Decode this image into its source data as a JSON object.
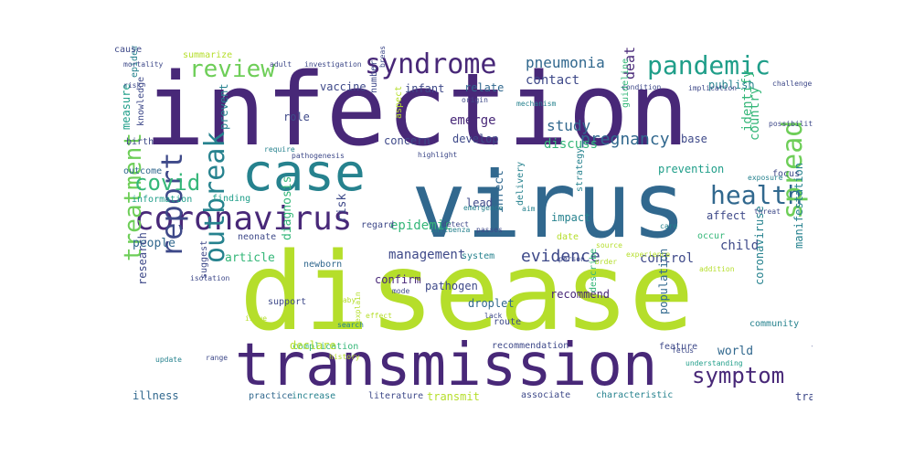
{
  "word_cloud": {
    "palette": {
      "dark_purple": "#440154",
      "purple": "#482878",
      "indigo": "#3e4989",
      "blue": "#31688e",
      "teal": "#26828e",
      "green_teal": "#1f9e89",
      "green": "#35b779",
      "lime": "#6ece58",
      "yellow_green": "#b5de2b"
    },
    "words": [
      {
        "text": "infection",
        "color": "#482878",
        "orientation": "horizontal"
      },
      {
        "text": "disease",
        "color": "#b5de2b",
        "orientation": "horizontal"
      },
      {
        "text": "virus",
        "color": "#31688e",
        "orientation": "horizontal"
      },
      {
        "text": "transmission",
        "color": "#482878",
        "orientation": "horizontal"
      },
      {
        "text": "case",
        "color": "#26828e",
        "orientation": "horizontal"
      },
      {
        "text": "coronavirus",
        "color": "#482878",
        "orientation": "horizontal"
      },
      {
        "text": "syndrome",
        "color": "#482878",
        "orientation": "horizontal"
      },
      {
        "text": "pandemic",
        "color": "#1f9e89",
        "orientation": "horizontal"
      },
      {
        "text": "review",
        "color": "#6ece58",
        "orientation": "horizontal"
      },
      {
        "text": "health",
        "color": "#31688e",
        "orientation": "horizontal"
      },
      {
        "text": "spread",
        "color": "#6ece58",
        "orientation": "vertical"
      },
      {
        "text": "report",
        "color": "#3e4989",
        "orientation": "vertical"
      },
      {
        "text": "outbreak",
        "color": "#26828e",
        "orientation": "vertical"
      },
      {
        "text": "treatment",
        "color": "#6ece58",
        "orientation": "vertical"
      },
      {
        "text": "symptom",
        "color": "#482878",
        "orientation": "horizontal"
      },
      {
        "text": "covid",
        "color": "#35b779",
        "orientation": "horizontal"
      },
      {
        "text": "pregnancy",
        "color": "#31688e",
        "orientation": "horizontal"
      },
      {
        "text": "evidence",
        "color": "#3e4989",
        "orientation": "horizontal"
      },
      {
        "text": "management",
        "color": "#3e4989",
        "orientation": "horizontal"
      },
      {
        "text": "pneumonia",
        "color": "#31688e",
        "orientation": "horizontal"
      },
      {
        "text": "death",
        "color": "#482878",
        "orientation": "vertical"
      },
      {
        "text": "epidemic",
        "color": "#35b779",
        "orientation": "horizontal"
      },
      {
        "text": "contact",
        "color": "#3e4989",
        "orientation": "horizontal"
      },
      {
        "text": "study",
        "color": "#31688e",
        "orientation": "horizontal"
      },
      {
        "text": "emerge",
        "color": "#482878",
        "orientation": "horizontal"
      },
      {
        "text": "discuss",
        "color": "#35b779",
        "orientation": "horizontal"
      },
      {
        "text": "identify",
        "color": "#35b779",
        "orientation": "vertical"
      },
      {
        "text": "country",
        "color": "#35b779",
        "orientation": "vertical"
      },
      {
        "text": "prevention",
        "color": "#1f9e89",
        "orientation": "horizontal"
      },
      {
        "text": "affect",
        "color": "#3e4989",
        "orientation": "horizontal"
      },
      {
        "text": "child",
        "color": "#3e4989",
        "orientation": "horizontal"
      },
      {
        "text": "manifestation",
        "color": "#26828e",
        "orientation": "vertical"
      },
      {
        "text": "coronaviruse",
        "color": "#26828e",
        "orientation": "vertical"
      },
      {
        "text": "control",
        "color": "#3e4989",
        "orientation": "horizontal"
      },
      {
        "text": "world",
        "color": "#31688e",
        "orientation": "horizontal"
      },
      {
        "text": "article",
        "color": "#35b779",
        "orientation": "horizontal"
      },
      {
        "text": "people",
        "color": "#31688e",
        "orientation": "horizontal"
      },
      {
        "text": "diagnosis",
        "color": "#35b779",
        "orientation": "vertical"
      },
      {
        "text": "risk",
        "color": "#3e4989",
        "orientation": "vertical"
      },
      {
        "text": "confirm",
        "color": "#482878",
        "orientation": "horizontal"
      },
      {
        "text": "infect",
        "color": "#31688e",
        "orientation": "vertical"
      },
      {
        "text": "lead",
        "color": "#3e4989",
        "orientation": "horizontal"
      },
      {
        "text": "vaccine",
        "color": "#3e4989",
        "orientation": "horizontal"
      },
      {
        "text": "infant",
        "color": "#3e4989",
        "orientation": "horizontal"
      },
      {
        "text": "relate",
        "color": "#31688e",
        "orientation": "horizontal"
      },
      {
        "text": "publish",
        "color": "#26828e",
        "orientation": "horizontal"
      },
      {
        "text": "measure",
        "color": "#1f9e89",
        "orientation": "vertical"
      },
      {
        "text": "knowledge",
        "color": "#3e4989",
        "orientation": "vertical"
      },
      {
        "text": "epidemiology",
        "color": "#26828e",
        "orientation": "vertical"
      },
      {
        "text": "prevent",
        "color": "#26828e",
        "orientation": "vertical"
      },
      {
        "text": "role",
        "color": "#3e4989",
        "orientation": "horizontal"
      },
      {
        "text": "concern",
        "color": "#3e4989",
        "orientation": "horizontal"
      },
      {
        "text": "develop",
        "color": "#3e4989",
        "orientation": "horizontal"
      },
      {
        "text": "guideline",
        "color": "#35b779",
        "orientation": "vertical"
      },
      {
        "text": "base",
        "color": "#3e4989",
        "orientation": "horizontal"
      },
      {
        "text": "number",
        "color": "#3e4989",
        "orientation": "vertical"
      },
      {
        "text": "aspect",
        "color": "#b5de2b",
        "orientation": "vertical"
      },
      {
        "text": "birth",
        "color": "#3e4989",
        "orientation": "horizontal"
      },
      {
        "text": "outcome",
        "color": "#31688e",
        "orientation": "horizontal"
      },
      {
        "text": "information",
        "color": "#1f9e89",
        "orientation": "horizontal"
      },
      {
        "text": "finding",
        "color": "#1f9e89",
        "orientation": "horizontal"
      },
      {
        "text": "focus",
        "color": "#3e4989",
        "orientation": "horizontal"
      },
      {
        "text": "neonate",
        "color": "#3e4989",
        "orientation": "horizontal"
      },
      {
        "text": "regard",
        "color": "#3e4989",
        "orientation": "horizontal"
      },
      {
        "text": "strategy",
        "color": "#26828e",
        "orientation": "vertical"
      },
      {
        "text": "delivery",
        "color": "#26828e",
        "orientation": "vertical"
      },
      {
        "text": "impact",
        "color": "#26828e",
        "orientation": "horizontal"
      },
      {
        "text": "date",
        "color": "#b5de2b",
        "orientation": "horizontal"
      },
      {
        "text": "occur",
        "color": "#35b779",
        "orientation": "horizontal"
      },
      {
        "text": "research",
        "color": "#3e4989",
        "orientation": "vertical"
      },
      {
        "text": "suggest",
        "color": "#3e4989",
        "orientation": "vertical"
      },
      {
        "text": "newborn",
        "color": "#31688e",
        "orientation": "horizontal"
      },
      {
        "text": "system",
        "color": "#26828e",
        "orientation": "horizontal"
      },
      {
        "text": "pathogen",
        "color": "#3e4989",
        "orientation": "horizontal"
      },
      {
        "text": "droplet",
        "color": "#31688e",
        "orientation": "horizontal"
      },
      {
        "text": "recommend",
        "color": "#482878",
        "orientation": "horizontal"
      },
      {
        "text": "describe",
        "color": "#35b779",
        "orientation": "vertical"
      },
      {
        "text": "population",
        "color": "#31688e",
        "orientation": "vertical"
      },
      {
        "text": "complication",
        "color": "#35b779",
        "orientation": "horizontal"
      },
      {
        "text": "declare",
        "color": "#b5de2b",
        "orientation": "horizontal"
      },
      {
        "text": "recommendation",
        "color": "#3e4989",
        "orientation": "horizontal"
      },
      {
        "text": "feature",
        "color": "#3e4989",
        "orientation": "horizontal"
      },
      {
        "text": "family",
        "color": "#3e4989",
        "orientation": "horizontal"
      },
      {
        "text": "illness",
        "color": "#31688e",
        "orientation": "horizontal"
      },
      {
        "text": "practice",
        "color": "#31688e",
        "orientation": "horizontal"
      },
      {
        "text": "increase",
        "color": "#26828e",
        "orientation": "horizontal"
      },
      {
        "text": "literature",
        "color": "#3e4989",
        "orientation": "horizontal"
      },
      {
        "text": "transmit",
        "color": "#b5de2b",
        "orientation": "horizontal"
      },
      {
        "text": "associate",
        "color": "#3e4989",
        "orientation": "horizontal"
      },
      {
        "text": "characteristic",
        "color": "#26828e",
        "orientation": "horizontal"
      },
      {
        "text": "tract",
        "color": "#3e4989",
        "orientation": "horizontal"
      },
      {
        "text": "route",
        "color": "#3e4989",
        "orientation": "horizontal"
      },
      {
        "text": "community",
        "color": "#26828e",
        "orientation": "horizontal"
      },
      {
        "text": "understanding",
        "color": "#1f9e89",
        "orientation": "horizontal"
      },
      {
        "text": "adult",
        "color": "#3e4989",
        "orientation": "horizontal"
      },
      {
        "text": "mortality",
        "color": "#3e4989",
        "orientation": "horizontal"
      },
      {
        "text": "summarize",
        "color": "#b5de2b",
        "orientation": "horizontal"
      },
      {
        "text": "investigation",
        "color": "#3e4989",
        "orientation": "horizontal"
      },
      {
        "text": "challenge",
        "color": "#3e4989",
        "orientation": "horizontal"
      },
      {
        "text": "implication",
        "color": "#3e4989",
        "orientation": "horizontal"
      },
      {
        "text": "condition",
        "color": "#3e4989",
        "orientation": "horizontal"
      },
      {
        "text": "require",
        "color": "#26828e",
        "orientation": "horizontal"
      },
      {
        "text": "pathogenesis",
        "color": "#3e4989",
        "orientation": "horizontal"
      },
      {
        "text": "highlight",
        "color": "#3e4989",
        "orientation": "horizontal"
      },
      {
        "text": "emergence",
        "color": "#26828e",
        "orientation": "horizontal"
      },
      {
        "text": "aim",
        "color": "#26828e",
        "orientation": "horizontal"
      },
      {
        "text": "influenza",
        "color": "#26828e",
        "orientation": "horizontal"
      },
      {
        "text": "exposure",
        "color": "#26828e",
        "orientation": "horizontal"
      },
      {
        "text": "possibility",
        "color": "#3e4989",
        "orientation": "horizontal"
      },
      {
        "text": "breastfeed",
        "color": "#3e4989",
        "orientation": "vertical"
      },
      {
        "text": "origin",
        "color": "#3e4989",
        "orientation": "horizontal"
      },
      {
        "text": "threat",
        "color": "#3e4989",
        "orientation": "horizontal"
      },
      {
        "text": "care",
        "color": "#26828e",
        "orientation": "horizontal"
      },
      {
        "text": "mode",
        "color": "#3e4989",
        "orientation": "horizontal"
      },
      {
        "text": "support",
        "color": "#3e4989",
        "orientation": "horizontal"
      },
      {
        "text": "issue",
        "color": "#b5de2b",
        "orientation": "horizontal"
      },
      {
        "text": "baby",
        "color": "#b5de2b",
        "orientation": "horizontal"
      },
      {
        "text": "effect",
        "color": "#b5de2b",
        "orientation": "horizontal"
      },
      {
        "text": "lack",
        "color": "#3e4989",
        "orientation": "horizontal"
      },
      {
        "text": "range",
        "color": "#3e4989",
        "orientation": "horizontal"
      },
      {
        "text": "update",
        "color": "#26828e",
        "orientation": "horizontal"
      },
      {
        "text": "history",
        "color": "#b5de2b",
        "orientation": "horizontal"
      },
      {
        "text": "fetus",
        "color": "#3e4989",
        "orientation": "horizontal"
      },
      {
        "text": "isolation",
        "color": "#3e4989",
        "orientation": "horizontal"
      },
      {
        "text": "source",
        "color": "#b5de2b",
        "orientation": "horizontal"
      },
      {
        "text": "order",
        "color": "#b5de2b",
        "orientation": "horizontal"
      },
      {
        "text": "addition",
        "color": "#b5de2b",
        "orientation": "horizontal"
      },
      {
        "text": "search",
        "color": "#26828e",
        "orientation": "horizontal"
      },
      {
        "text": "detect",
        "color": "#3e4989",
        "orientation": "horizontal"
      },
      {
        "text": "passes",
        "color": "#3e4989",
        "orientation": "horizontal"
      },
      {
        "text": "person",
        "color": "#3e4989",
        "orientation": "horizontal"
      },
      {
        "text": "mechanism",
        "color": "#26828e",
        "orientation": "horizontal"
      },
      {
        "text": "explain",
        "color": "#b5de2b",
        "orientation": "vertical"
      },
      {
        "text": "risk",
        "color": "#3e4989",
        "orientation": "horizontal"
      },
      {
        "text": "experience",
        "color": "#b5de2b",
        "orientation": "horizontal"
      },
      {
        "text": "cause",
        "color": "#3e4989",
        "orientation": "horizontal"
      }
    ]
  }
}
